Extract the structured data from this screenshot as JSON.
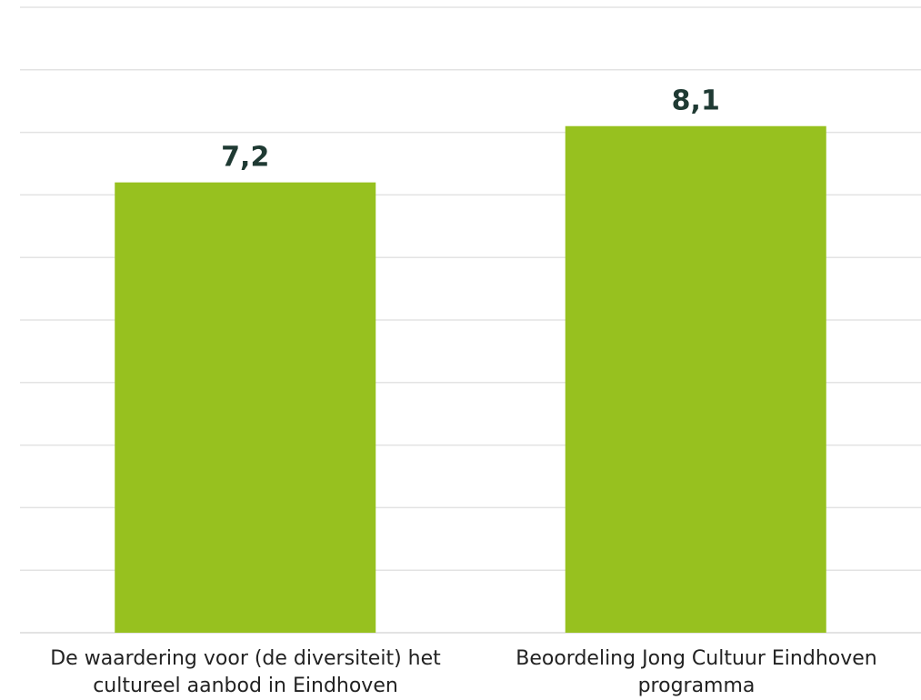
{
  "chart_data": {
    "type": "bar",
    "title": "",
    "xlabel": "",
    "ylabel": "",
    "categories": [
      "De waardering voor (de diversiteit) het cultureel aanbod in Eindhoven",
      "Beoordeling Jong Cultuur Eindhoven programma"
    ],
    "values": [
      7.2,
      8.1
    ],
    "value_labels": [
      "7,2",
      "8,1"
    ],
    "ylim": [
      0,
      10
    ],
    "grid": true,
    "legend": "none",
    "colors": {
      "bar": "#97c11f",
      "gridline": "#e3e3e3",
      "value_label": "#1f3a33",
      "category_label": "#222222"
    }
  }
}
